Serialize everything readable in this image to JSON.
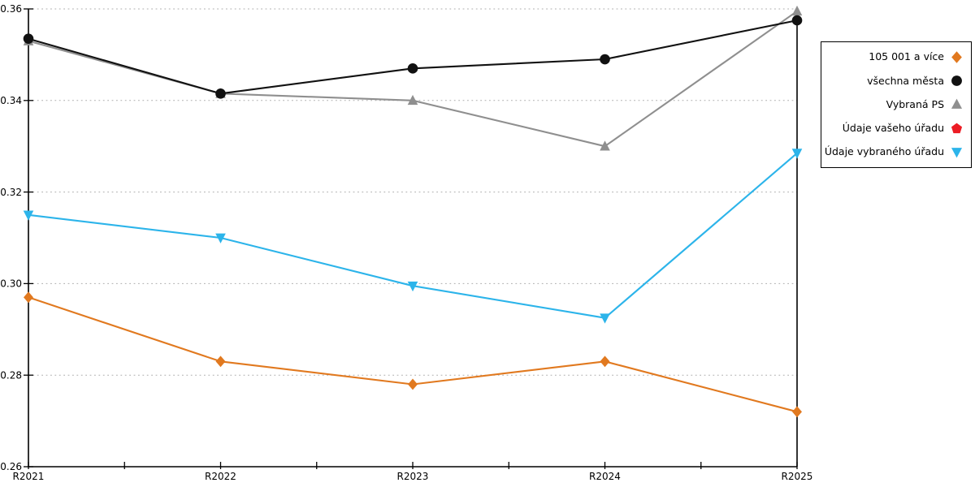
{
  "chart_data": {
    "type": "line",
    "title": "",
    "xlabel": "",
    "ylabel": "",
    "categories": [
      "R2021",
      "R2022",
      "R2023",
      "R2024",
      "R2025"
    ],
    "ylim": [
      0.26,
      0.36
    ],
    "y_ticks": [
      "0.26",
      "0.28",
      "0.30",
      "0.32",
      "0.34",
      "0.36"
    ],
    "grid": "horizontal dotted",
    "legend_position": "outside top-right",
    "axis_color": "#000000",
    "grid_color": "#adadad",
    "series": [
      {
        "name": "105 001 a více",
        "color": "#e1791f",
        "marker": "diamond",
        "values": [
          0.297,
          0.283,
          0.278,
          0.283,
          0.272
        ]
      },
      {
        "name": "všechna města",
        "color": "#111111",
        "marker": "circle",
        "values": [
          0.3535,
          0.3415,
          0.347,
          0.349,
          0.3575
        ]
      },
      {
        "name": "Vybraná PS",
        "color": "#8f8f8f",
        "marker": "triangle-up",
        "values": [
          0.353,
          0.3415,
          0.34,
          0.33,
          0.3595
        ]
      },
      {
        "name": "Údaje vašeho úřadu",
        "color": "#ec1c24",
        "marker": "pentagon",
        "values": []
      },
      {
        "name": "Údaje vybraného úřadu",
        "color": "#2cb4ea",
        "marker": "triangle-down",
        "values": [
          0.315,
          0.31,
          0.2995,
          0.2925,
          0.3285
        ]
      }
    ]
  }
}
